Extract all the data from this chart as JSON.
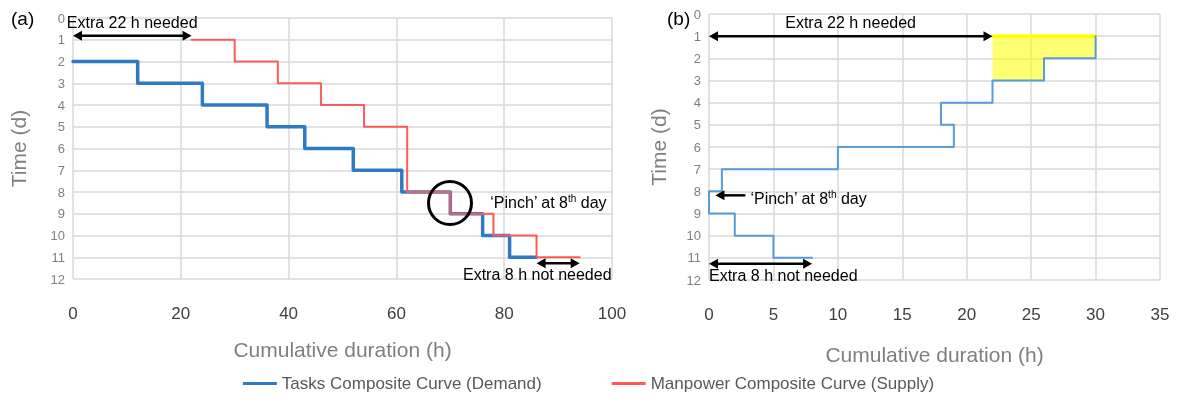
{
  "chart_data": [
    {
      "type": "line",
      "title": "(a)",
      "xlabel": "Cumulative duration (h)",
      "ylabel": "Time (d)",
      "xlim": [
        0,
        100
      ],
      "xticks": [
        0,
        20,
        40,
        60,
        80,
        100
      ],
      "ylim": [
        12,
        0
      ],
      "yticks": [
        0,
        1,
        2,
        3,
        4,
        5,
        6,
        7,
        8,
        9,
        10,
        11,
        12
      ],
      "grid": true,
      "legend": "bottom",
      "marker": "none",
      "line_style": "solid",
      "series": [
        {
          "name": "Tasks Composite Curve (Demand)",
          "color": "#2f7ac4",
          "x": [
            0,
            12,
            12,
            24,
            24,
            36,
            36,
            43,
            43,
            52,
            52,
            61,
            61,
            70,
            70,
            76,
            76,
            81,
            81,
            86
          ],
          "values": [
            2,
            2,
            3,
            3,
            4,
            4,
            5,
            5,
            6,
            6,
            7,
            7,
            8,
            8,
            9,
            9,
            10,
            10,
            11,
            11
          ]
        },
        {
          "name": "Manpower Composite Curve (Supply)",
          "color": "#ff5a5a",
          "x": [
            22,
            30,
            30,
            38,
            38,
            46,
            46,
            54,
            54,
            62,
            62,
            70,
            70,
            78,
            78,
            86,
            86,
            94
          ],
          "values": [
            1,
            1,
            2,
            2,
            3,
            3,
            4,
            4,
            5,
            5,
            8,
            8,
            9,
            9,
            10,
            10,
            11,
            11
          ]
        }
      ],
      "annotations": [
        {
          "text": "Extra 22 h needed",
          "x": 22,
          "y": 1
        },
        {
          "text": "‘Pinch’ at 8$^{th}$ day",
          "x": 70,
          "y": 8.5
        },
        {
          "text": "Extra 8 h not needed",
          "x": 94,
          "y": 11
        }
      ]
    },
    {
      "type": "line",
      "title": "(b)",
      "xlabel": "Cumulative duration (h)",
      "ylabel": "Time (d)",
      "xlim": [
        0,
        35
      ],
      "xticks": [
        0,
        5,
        10,
        15,
        20,
        25,
        30,
        35
      ],
      "ylim": [
        12,
        0
      ],
      "yticks": [
        0,
        1,
        2,
        3,
        4,
        5,
        6,
        7,
        8,
        9,
        10,
        11,
        12
      ],
      "grid": true,
      "marker": "none",
      "line_style": "solid",
      "series": [
        {
          "color": "#ffff00",
          "x": [
            22,
            26,
            26,
            30
          ],
          "values": [
            1,
            1,
            1,
            1
          ],
          "lower": [
            1,
            1,
            1,
            1
          ],
          "upper": [
            3,
            3,
            2,
            2
          ]
        },
        {
          "color": "#5b9bd5",
          "x": [
            30,
            30,
            26,
            26,
            22,
            22,
            18,
            18,
            19,
            19,
            10,
            10,
            1,
            1,
            0,
            0,
            2,
            2,
            5,
            5,
            8
          ],
          "values": [
            1,
            2,
            2,
            3,
            3,
            4,
            4,
            5,
            5,
            6,
            6,
            7,
            7,
            8,
            8,
            9,
            9,
            10,
            10,
            11,
            11
          ]
        }
      ],
      "annotations": [
        "Extra 22 h needed",
        {
          "text": "‘Pinch’ at 8$^{th}$ day",
          "x": 0.5,
          "y": 8
        },
        {
          "text": "Extra 8 h not needed",
          "x": 8,
          "y": 11
        }
      ]
    }
  ]
}
